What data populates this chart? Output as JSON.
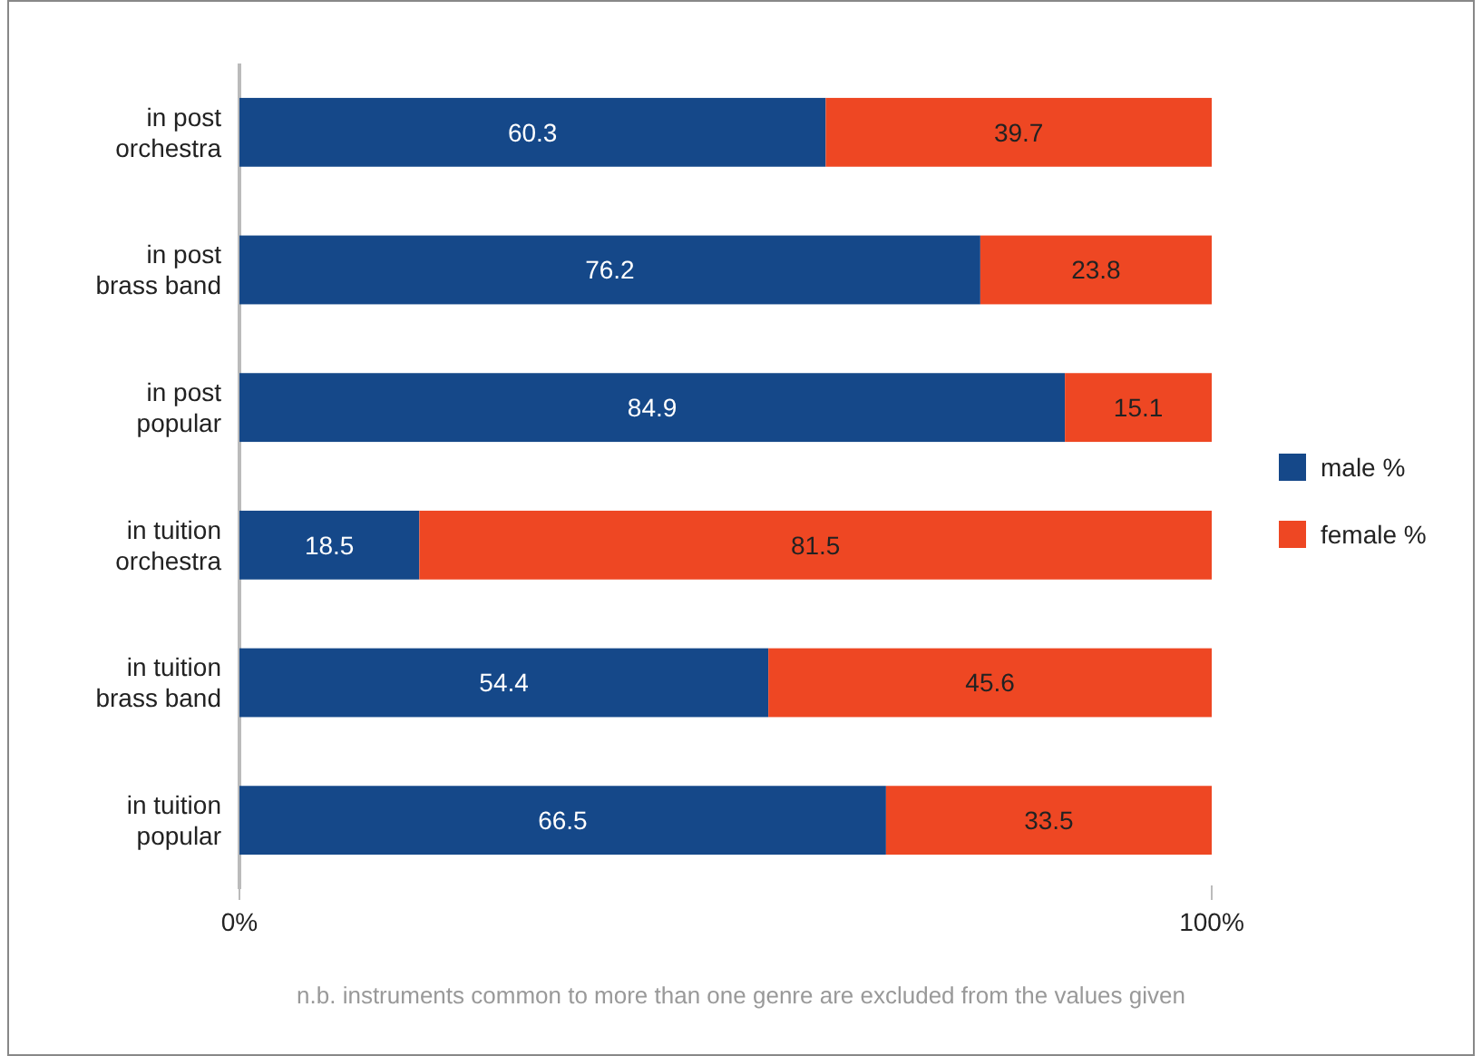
{
  "chart_data": {
    "type": "bar",
    "orientation": "horizontal",
    "stacked": true,
    "categories": [
      "in post\norchestra",
      "in post\nbrass band",
      "in post\npopular",
      "in tuition\norchestra",
      "in tuition\nbrass band",
      "in tuition\npopular"
    ],
    "series": [
      {
        "name": "male %",
        "color": "#154889",
        "values": [
          60.3,
          76.2,
          84.9,
          18.5,
          54.4,
          66.5
        ]
      },
      {
        "name": "female %",
        "color": "#ee4723",
        "values": [
          39.7,
          23.8,
          15.1,
          81.5,
          45.6,
          33.5
        ]
      }
    ],
    "xlim": [
      0,
      100
    ],
    "xticks": [
      {
        "value": 0,
        "label": "0%"
      },
      {
        "value": 100,
        "label": "100%"
      }
    ],
    "data_labels": true,
    "legend": "right",
    "grid": false,
    "annotations": [
      "n.b. instruments common to more than one genre are excluded from the  values given"
    ]
  }
}
